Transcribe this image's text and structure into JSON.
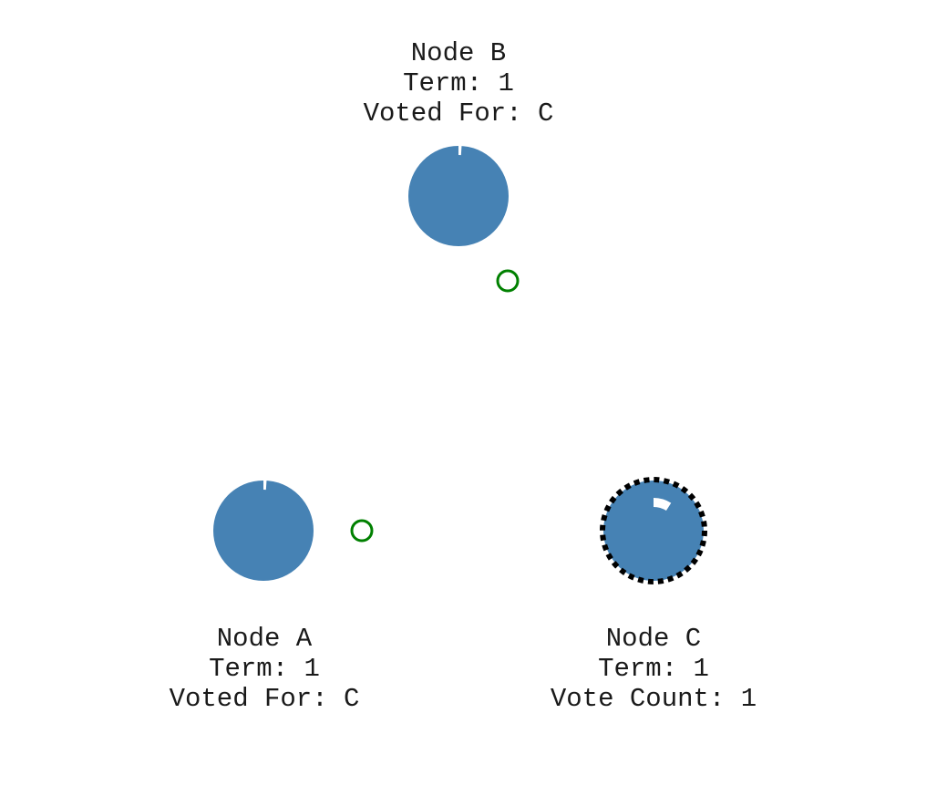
{
  "nodes": {
    "b": {
      "name": "Node B",
      "term": "Term: 1",
      "status": "Voted For: C",
      "state": "follower",
      "timer_fraction": 0.01
    },
    "a": {
      "name": "Node A",
      "term": "Term: 1",
      "status": "Voted For: C",
      "state": "follower",
      "timer_fraction": 0.01
    },
    "c": {
      "name": "Node C",
      "term": "Term: 1",
      "status": "Vote Count: 1",
      "state": "candidate",
      "timer_fraction": 0.09
    }
  },
  "messages": [
    {
      "type": "vote-response"
    },
    {
      "type": "vote-response"
    }
  ],
  "colors": {
    "node_fill": "#4682b4",
    "timer_arc": "#ffffff",
    "message_stroke": "#008000",
    "candidate_ring": "#000000",
    "text": "#1a1a1a"
  }
}
